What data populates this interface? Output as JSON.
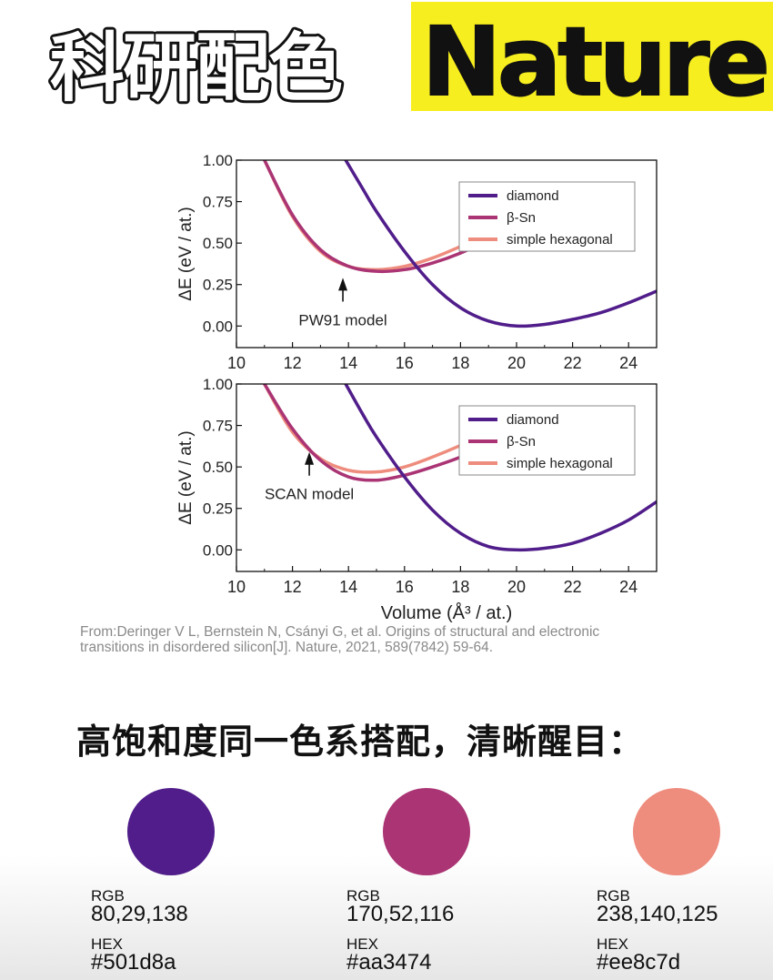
{
  "banner": {
    "left_text": "科研配色",
    "right_text": "Nature"
  },
  "colors": {
    "diamond": "#501d8a",
    "beta_sn": "#aa3474",
    "simple_hexagonal": "#ee8c7d",
    "banner_yellow": "#f7ee1f"
  },
  "chart_data": [
    {
      "type": "line",
      "panel": "top",
      "annotation": "PW91 model",
      "annotation_arrow_x": 13.8,
      "ylabel": "ΔE (eV / at.)",
      "xlabel": "",
      "xlim": [
        10,
        25
      ],
      "ylim": [
        -0.13,
        1.0
      ],
      "xticks": [
        "10",
        "12",
        "14",
        "16",
        "18",
        "20",
        "22",
        "24"
      ],
      "yticks": [
        "0.00",
        "0.25",
        "0.50",
        "0.75",
        "1.00"
      ],
      "legend_position": "top-right",
      "series": [
        {
          "name": "diamond",
          "x": [
            13.9,
            14.5,
            15.0,
            16.0,
            17.0,
            18.0,
            19.0,
            20.0,
            21.0,
            22.0,
            23.0,
            24.0,
            25.0
          ],
          "y": [
            1.0,
            0.83,
            0.69,
            0.45,
            0.25,
            0.11,
            0.03,
            0.0,
            0.01,
            0.04,
            0.08,
            0.14,
            0.21
          ]
        },
        {
          "name": "β-Sn",
          "x": [
            11.0,
            12.0,
            13.0,
            14.0,
            15.0,
            16.0,
            17.0,
            18.0,
            19.0
          ],
          "y": [
            1.0,
            0.67,
            0.46,
            0.36,
            0.33,
            0.34,
            0.38,
            0.44,
            0.52
          ]
        },
        {
          "name": "simple hexagonal",
          "x": [
            11.0,
            12.0,
            13.0,
            14.0,
            15.0,
            16.0,
            17.0,
            18.0,
            19.0
          ],
          "y": [
            1.0,
            0.66,
            0.45,
            0.36,
            0.34,
            0.36,
            0.41,
            0.48,
            0.56
          ]
        }
      ]
    },
    {
      "type": "line",
      "panel": "bottom",
      "annotation": "SCAN model",
      "annotation_arrow_x": 12.6,
      "ylabel": "ΔE (eV / at.)",
      "xlabel": "Volume (Å³ / at.)",
      "xlim": [
        10,
        25
      ],
      "ylim": [
        -0.13,
        1.0
      ],
      "xticks": [
        "10",
        "12",
        "14",
        "16",
        "18",
        "20",
        "22",
        "24"
      ],
      "yticks": [
        "0.00",
        "0.25",
        "0.50",
        "0.75",
        "1.00"
      ],
      "legend_position": "top-right",
      "series": [
        {
          "name": "diamond",
          "x": [
            13.9,
            14.5,
            15.0,
            16.0,
            17.0,
            18.0,
            19.0,
            20.0,
            21.0,
            22.0,
            23.0,
            24.0,
            25.0
          ],
          "y": [
            1.0,
            0.82,
            0.68,
            0.44,
            0.24,
            0.1,
            0.02,
            0.0,
            0.01,
            0.04,
            0.1,
            0.18,
            0.29
          ]
        },
        {
          "name": "β-Sn",
          "x": [
            11.0,
            12.0,
            13.0,
            14.0,
            15.0,
            16.0,
            17.0,
            18.0,
            19.0
          ],
          "y": [
            1.0,
            0.73,
            0.54,
            0.44,
            0.42,
            0.45,
            0.5,
            0.56,
            0.64
          ]
        },
        {
          "name": "simple hexagonal",
          "x": [
            11.0,
            12.0,
            13.0,
            14.0,
            15.0,
            16.0,
            17.0,
            18.0,
            19.0
          ],
          "y": [
            1.0,
            0.71,
            0.55,
            0.48,
            0.47,
            0.5,
            0.56,
            0.63,
            0.71
          ]
        }
      ]
    }
  ],
  "citation": {
    "line1": "From:Deringer V L, Bernstein N, Csányi G, et al. Origins of structural and electronic",
    "line2": "transitions in disordered silicon[J]. Nature, 2021, 589(7842) 59-64."
  },
  "heading": "高饱和度同一色系搭配，清晰醒目：",
  "swatches": [
    {
      "rgb_label": "RGB",
      "rgb": "80,29,138",
      "hex_label": "HEX",
      "hex": "#501d8a",
      "color": "#501d8a"
    },
    {
      "rgb_label": "RGB",
      "rgb": "170,52,116",
      "hex_label": "HEX",
      "hex": "#aa3474",
      "color": "#aa3474"
    },
    {
      "rgb_label": "RGB",
      "rgb": "238,140,125",
      "hex_label": "HEX",
      "hex": "#ee8c7d",
      "color": "#ee8c7d"
    }
  ]
}
